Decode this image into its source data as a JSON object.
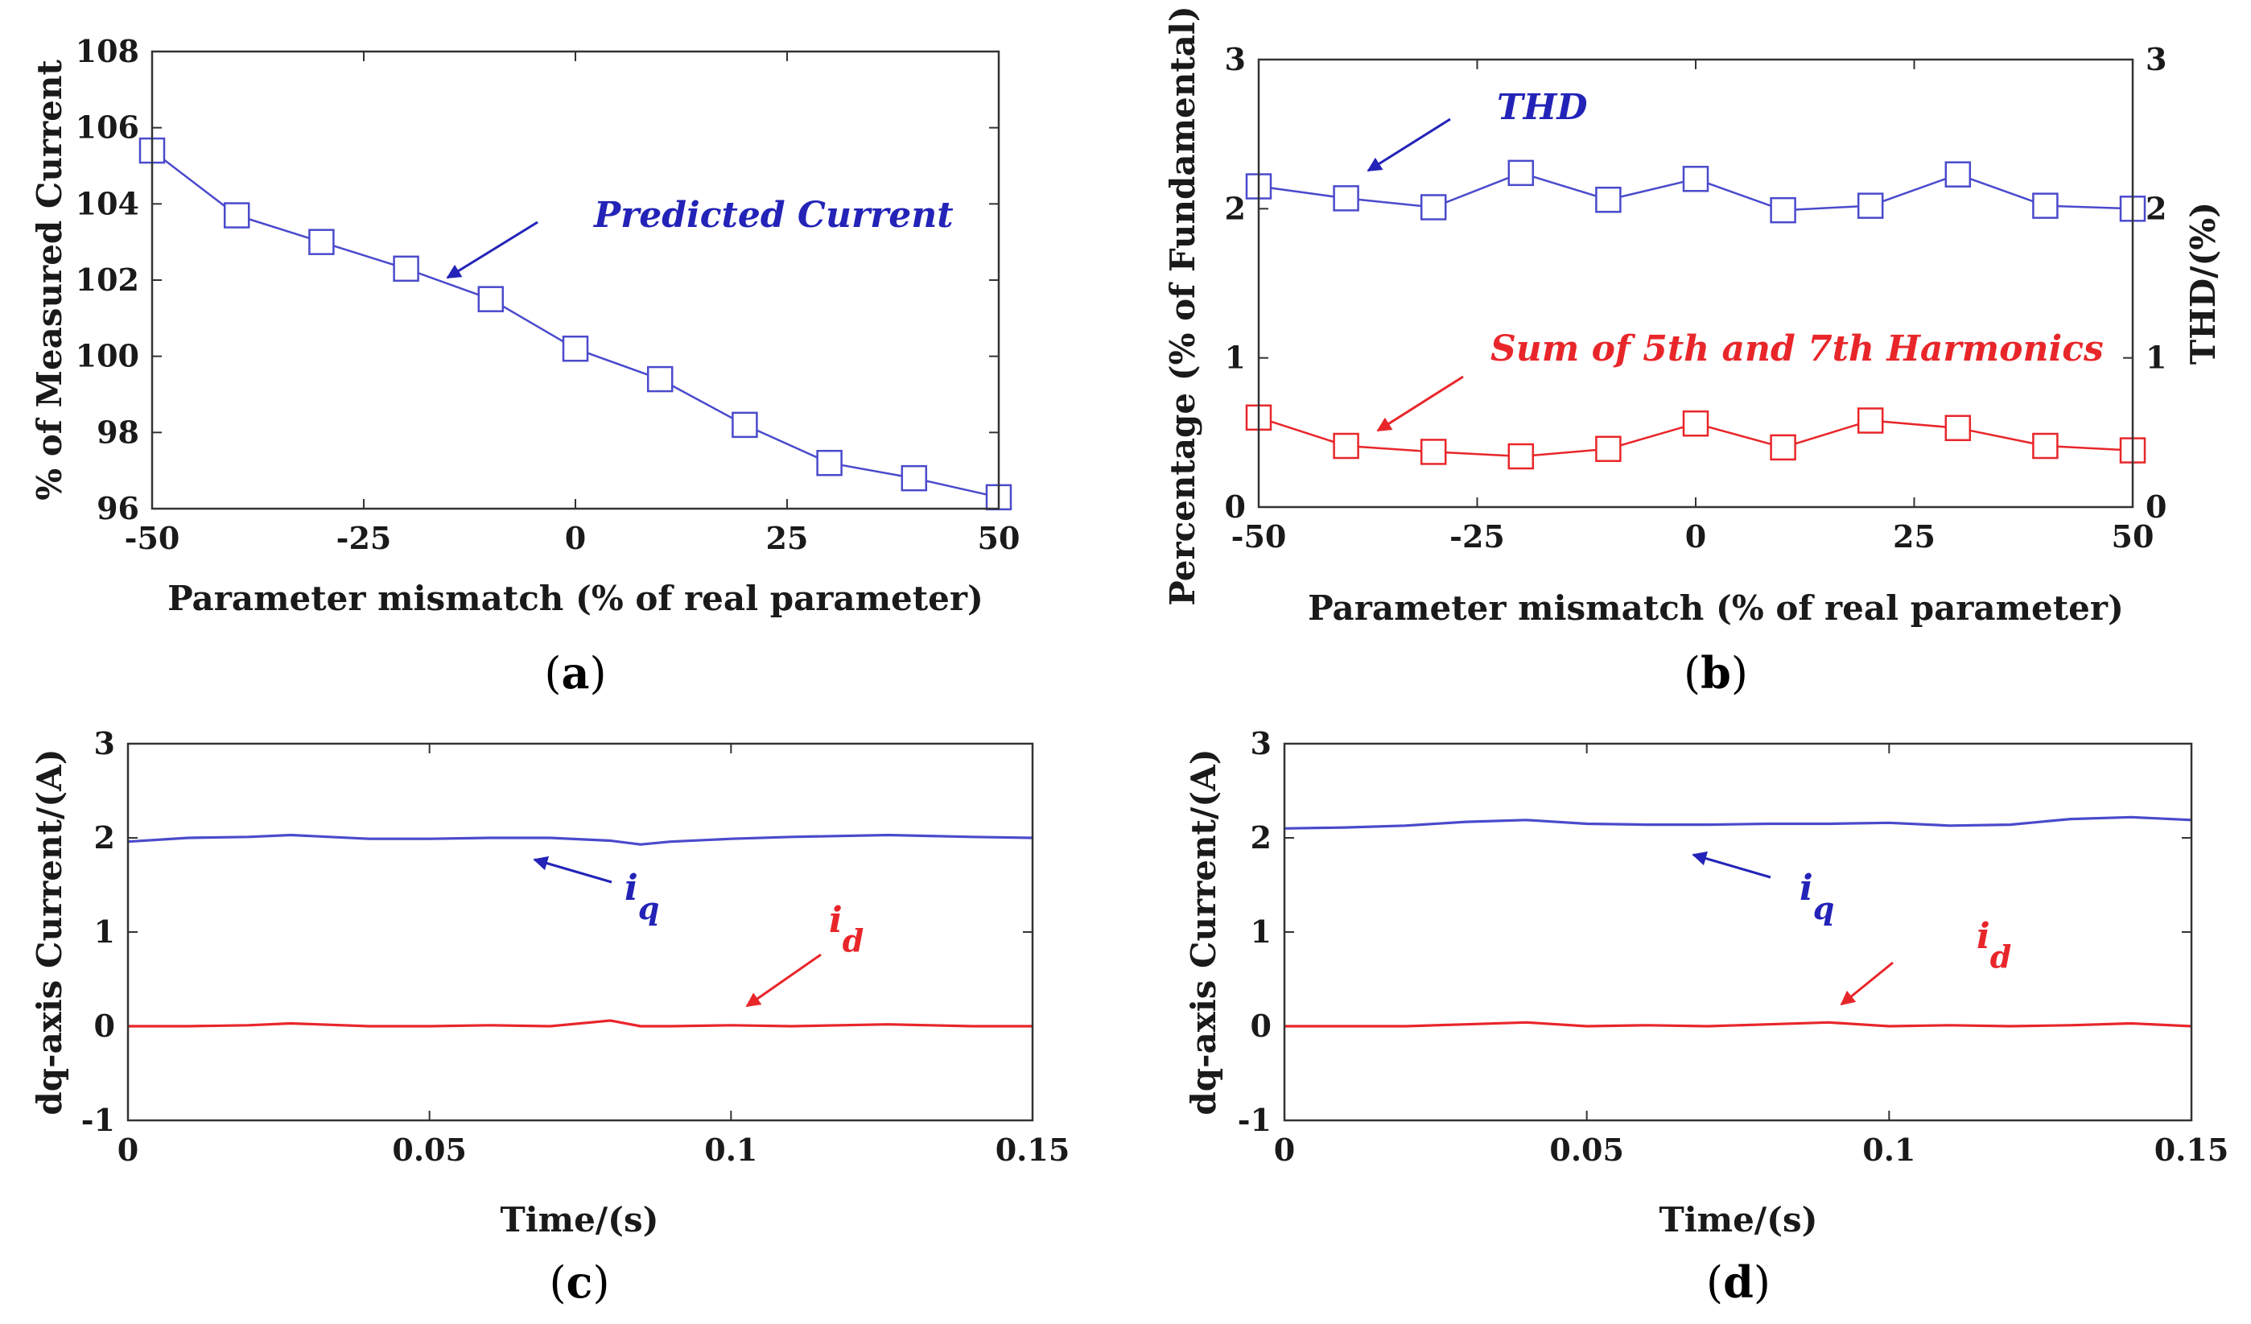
{
  "colors": {
    "blue": "#2323b8",
    "red": "#e8262a",
    "axis": "#333333",
    "series_blue": "#4a4acc",
    "series_red": "#e8262a"
  },
  "chart_data": [
    {
      "id": "a",
      "type": "line",
      "caption": {
        "open": "(",
        "letter": "a",
        "close": ")"
      },
      "x": [
        -50,
        -40,
        -30,
        -20,
        -10,
        0,
        10,
        20,
        30,
        40,
        50
      ],
      "series": [
        {
          "name": "Predicted Current",
          "values": [
            105.4,
            103.7,
            103.0,
            102.3,
            101.5,
            100.2,
            99.4,
            98.2,
            97.2,
            96.8,
            96.3
          ],
          "marker": "square"
        }
      ],
      "xlabel": "Parameter mismatch (% of real parameter)",
      "ylabel": "% of Measured Current",
      "xlim": [
        -50,
        50
      ],
      "ylim": [
        96,
        108
      ],
      "xticks": [
        -50,
        -25,
        0,
        25,
        50
      ],
      "yticks": [
        96,
        98,
        100,
        102,
        104,
        106,
        108
      ],
      "annotations": [
        {
          "text": "Predicted Current",
          "color": "blue"
        }
      ]
    },
    {
      "id": "b",
      "type": "line",
      "caption": {
        "open": "(",
        "letter": "b",
        "close": ")"
      },
      "x": [
        -50,
        -40,
        -30,
        -20,
        -10,
        0,
        10,
        20,
        30,
        40,
        50
      ],
      "series": [
        {
          "name": "THD",
          "values": [
            2.15,
            2.07,
            2.01,
            2.24,
            2.06,
            2.2,
            1.99,
            2.02,
            2.23,
            2.02,
            2.0
          ],
          "marker": "square",
          "axis": "right"
        },
        {
          "name": "Sum of 5th and 7th Harmonics",
          "values": [
            0.6,
            0.41,
            0.37,
            0.34,
            0.39,
            0.56,
            0.4,
            0.58,
            0.53,
            0.41,
            0.38
          ],
          "marker": "square",
          "axis": "left"
        }
      ],
      "xlabel": "Parameter mismatch (% of real parameter)",
      "ylabel": "Percentage (% of Fundamental)",
      "ylabel_right": "THD/(%)",
      "xlim": [
        -50,
        50
      ],
      "ylim": [
        0,
        3
      ],
      "ylim_right": [
        0,
        3
      ],
      "xticks": [
        -50,
        -25,
        0,
        25,
        50
      ],
      "yticks": [
        0,
        1,
        2,
        3
      ],
      "annotations": [
        {
          "text": "THD",
          "color": "blue"
        },
        {
          "text": "Sum of 5th and 7th Harmonics",
          "color": "red"
        }
      ]
    },
    {
      "id": "c",
      "type": "line",
      "caption": {
        "open": "(",
        "letter": "c",
        "close": ")"
      },
      "x": [
        0,
        0.01,
        0.02,
        0.027,
        0.04,
        0.05,
        0.06,
        0.07,
        0.08,
        0.085,
        0.09,
        0.1,
        0.11,
        0.126,
        0.14,
        0.15
      ],
      "series": [
        {
          "name": "iq",
          "values": [
            1.96,
            2.0,
            2.01,
            2.03,
            1.99,
            1.99,
            2.0,
            2.0,
            1.97,
            1.93,
            1.96,
            1.99,
            2.01,
            2.03,
            2.01,
            2.0
          ]
        },
        {
          "name": "id",
          "values": [
            0.0,
            0.0,
            0.01,
            0.03,
            0.0,
            0.0,
            0.01,
            0.0,
            0.06,
            0.0,
            0.0,
            0.01,
            0.0,
            0.02,
            0.0,
            0.0
          ]
        }
      ],
      "xlabel": "Time/(s)",
      "ylabel": "dq-axis Current/(A)",
      "xlim": [
        0,
        0.15
      ],
      "ylim": [
        -1,
        3
      ],
      "xticks": [
        0,
        0.05,
        0.1,
        0.15
      ],
      "yticks": [
        -1,
        0,
        1,
        2,
        3
      ],
      "annotations": [
        {
          "text": "i",
          "sub": "q",
          "color": "blue"
        },
        {
          "text": "i",
          "sub": "d",
          "color": "red"
        }
      ]
    },
    {
      "id": "d",
      "type": "line",
      "caption": {
        "open": "(",
        "letter": "d",
        "close": ")"
      },
      "x": [
        0,
        0.01,
        0.02,
        0.03,
        0.04,
        0.05,
        0.06,
        0.07,
        0.08,
        0.09,
        0.1,
        0.11,
        0.12,
        0.13,
        0.14,
        0.15
      ],
      "series": [
        {
          "name": "iq",
          "values": [
            2.1,
            2.11,
            2.13,
            2.17,
            2.19,
            2.15,
            2.14,
            2.14,
            2.15,
            2.15,
            2.16,
            2.13,
            2.14,
            2.2,
            2.22,
            2.19
          ]
        },
        {
          "name": "id",
          "values": [
            0.0,
            0.0,
            0.0,
            0.02,
            0.04,
            0.0,
            0.01,
            0.0,
            0.02,
            0.04,
            0.0,
            0.01,
            0.0,
            0.01,
            0.03,
            0.0
          ]
        }
      ],
      "xlabel": "Time/(s)",
      "ylabel": "dq-axis Current/(A)",
      "xlim": [
        0,
        0.15
      ],
      "ylim": [
        -1,
        3
      ],
      "xticks": [
        0,
        0.05,
        0.1,
        0.15
      ],
      "yticks": [
        -1,
        0,
        1,
        2,
        3
      ],
      "annotations": [
        {
          "text": "i",
          "sub": "q",
          "color": "blue"
        },
        {
          "text": "i",
          "sub": "d",
          "color": "red"
        }
      ]
    }
  ]
}
